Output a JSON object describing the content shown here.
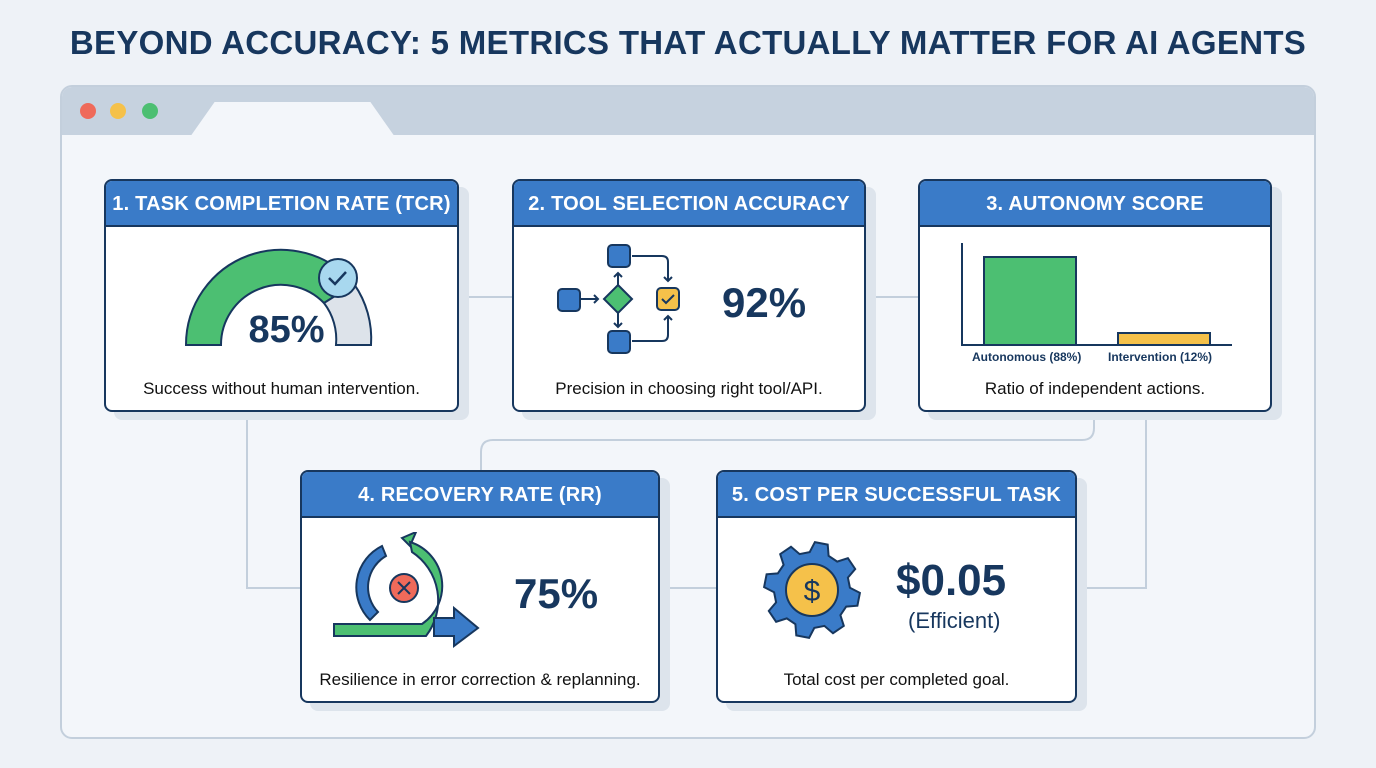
{
  "title": "BEYOND ACCURACY: 5 METRICS THAT ACTUALLY MATTER FOR AI AGENTS",
  "window": {
    "dots": [
      "#ef6a5a",
      "#f5c14a",
      "#4cbf72"
    ]
  },
  "colors": {
    "header": "#3a7bc8",
    "navy": "#17375e",
    "green": "#4cbf72",
    "amber": "#f5c14a",
    "red": "#ef6a5a"
  },
  "metrics": [
    {
      "header": "1. TASK COMPLETION RATE (TCR)",
      "value": "85%",
      "value_pct": 85,
      "description": "Success without human intervention.",
      "icon": "gauge-check-icon"
    },
    {
      "header": "2. TOOL SELECTION ACCURACY",
      "value": "92%",
      "description": "Precision in choosing right tool/API.",
      "icon": "flowchart-icon"
    },
    {
      "header": "3. AUTONOMY SCORE",
      "description": "Ratio of independent actions.",
      "icon": "bar-chart-icon",
      "chart_data": {
        "type": "bar",
        "categories": [
          "Autonomous (88%)",
          "Intervention (12%)"
        ],
        "values": [
          88,
          12
        ]
      }
    },
    {
      "header": "4. RECOVERY RATE (RR)",
      "value": "75%",
      "description": "Resilience in error correction & replanning.",
      "icon": "recovery-cycle-icon"
    },
    {
      "header": "5. COST PER SUCCESSFUL TASK",
      "value": "$0.05",
      "note": "(Efficient)",
      "description": "Total cost per completed goal.",
      "icon": "gear-dollar-icon"
    }
  ]
}
